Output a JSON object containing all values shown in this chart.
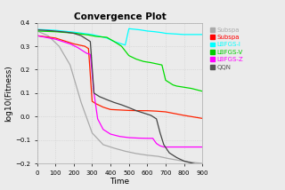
{
  "title": "Convergence Plot",
  "xlabel": "Time",
  "ylabel": "log10(Fitness)",
  "xlim": [
    0,
    900
  ],
  "ylim": [
    -0.2,
    0.4
  ],
  "yticks": [
    -0.2,
    -0.1,
    0.0,
    0.1,
    0.2,
    0.3,
    0.4
  ],
  "xticks": [
    0,
    100,
    200,
    300,
    400,
    500,
    600,
    700,
    800,
    900
  ],
  "legend_labels": [
    "Subspa",
    "Subspa",
    "LBFGS-I",
    "LBFGS-V",
    "LBFGS-Z",
    "QQN"
  ],
  "legend_colors": [
    "#aaaaaa",
    "#ff0000",
    "#00ffff",
    "#00cc00",
    "#ff00ff",
    "#555555"
  ],
  "legend_text_colors": [
    "#aaaaaa",
    "#ff0000",
    "#00ffff",
    "#00cc00",
    "#ff00ff",
    "#555555"
  ],
  "bg_color": "#ebebeb",
  "lines": {
    "subspace_gray": {
      "color": "#aaaaaa",
      "x": [
        0,
        60,
        120,
        180,
        240,
        300,
        360,
        420,
        480,
        540,
        600,
        660,
        720,
        780,
        840,
        900
      ],
      "y": [
        0.365,
        0.345,
        0.3,
        0.22,
        0.06,
        -0.07,
        -0.12,
        -0.135,
        -0.148,
        -0.158,
        -0.165,
        -0.17,
        -0.18,
        -0.188,
        -0.195,
        -0.2
      ]
    },
    "subspace_red": {
      "color": "#ff2200",
      "x": [
        0,
        100,
        200,
        260,
        280,
        300,
        320,
        360,
        400,
        450,
        500,
        550,
        600,
        650,
        700,
        800,
        900
      ],
      "y": [
        0.345,
        0.335,
        0.31,
        0.3,
        0.29,
        0.065,
        0.055,
        0.04,
        0.03,
        0.028,
        0.026,
        0.025,
        0.025,
        0.023,
        0.02,
        0.005,
        -0.008
      ]
    },
    "lbfgs_cyan": {
      "color": "#00ffff",
      "x": [
        0,
        100,
        200,
        300,
        380,
        420,
        460,
        480,
        500,
        560,
        600,
        640,
        680,
        700,
        800,
        900
      ],
      "y": [
        0.372,
        0.368,
        0.36,
        0.35,
        0.335,
        0.32,
        0.31,
        0.305,
        0.375,
        0.37,
        0.365,
        0.362,
        0.358,
        0.355,
        0.35,
        0.35
      ]
    },
    "lbfgs_green": {
      "color": "#00dd00",
      "x": [
        0,
        100,
        200,
        280,
        320,
        380,
        420,
        460,
        500,
        540,
        580,
        620,
        650,
        680,
        700,
        740,
        760,
        800,
        840,
        880,
        900
      ],
      "y": [
        0.365,
        0.362,
        0.356,
        0.348,
        0.342,
        0.338,
        0.32,
        0.3,
        0.26,
        0.245,
        0.235,
        0.23,
        0.225,
        0.22,
        0.155,
        0.135,
        0.13,
        0.125,
        0.12,
        0.112,
        0.108
      ]
    },
    "lbfgs_magenta": {
      "color": "#ff00ff",
      "x": [
        0,
        100,
        180,
        220,
        250,
        270,
        290,
        310,
        330,
        360,
        400,
        450,
        500,
        550,
        600,
        630,
        650,
        670,
        690,
        710,
        800,
        900
      ],
      "y": [
        0.345,
        0.33,
        0.31,
        0.295,
        0.28,
        0.27,
        0.265,
        0.1,
        -0.01,
        -0.055,
        -0.075,
        -0.085,
        -0.09,
        -0.092,
        -0.093,
        -0.093,
        -0.115,
        -0.125,
        -0.13,
        -0.13,
        -0.13,
        -0.13
      ]
    },
    "qqn_dark": {
      "color": "#444444",
      "x": [
        0,
        80,
        160,
        200,
        240,
        270,
        290,
        310,
        340,
        380,
        420,
        460,
        500,
        540,
        580,
        620,
        650,
        670,
        690,
        720,
        760,
        800,
        850,
        900
      ],
      "y": [
        0.37,
        0.366,
        0.36,
        0.355,
        0.345,
        0.33,
        0.32,
        0.1,
        0.085,
        0.072,
        0.06,
        0.05,
        0.038,
        0.025,
        0.015,
        0.005,
        -0.01,
        -0.07,
        -0.12,
        -0.155,
        -0.175,
        -0.19,
        -0.2,
        -0.21
      ]
    }
  }
}
